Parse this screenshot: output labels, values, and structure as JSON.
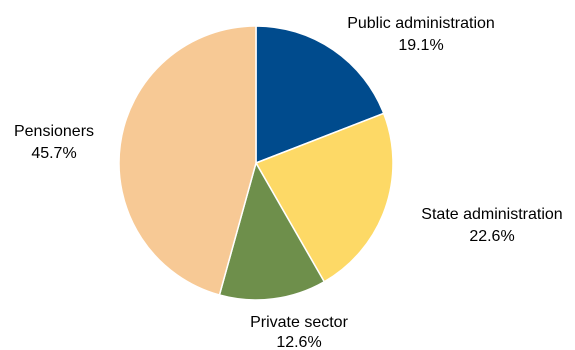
{
  "chart_data": {
    "type": "pie",
    "categories": [
      "Public administration",
      "State administration",
      "Private sector",
      "Pensioners"
    ],
    "values": [
      19.1,
      22.6,
      12.6,
      45.7
    ],
    "value_labels": [
      "19.1%",
      "22.6%",
      "12.6%",
      "45.7%"
    ],
    "colors": [
      "#004b8d",
      "#fdd966",
      "#6e8f4b",
      "#f7c995"
    ],
    "start_angle_deg": 0,
    "direction": "clockwise",
    "legend": "none",
    "labels_position": "outside"
  }
}
